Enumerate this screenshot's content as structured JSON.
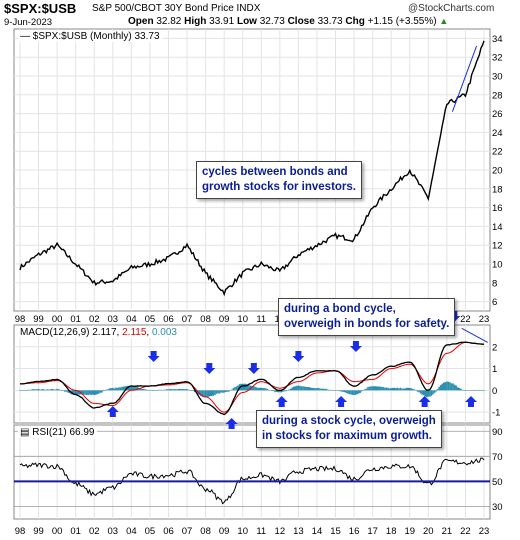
{
  "header": {
    "symbol": "$SPX:$USB",
    "description": "S&P 500/CBOT 30Y Bond Price INDX",
    "credit": "@StockCharts.com",
    "date": "9-Jun-2023",
    "open_label": "Open",
    "open": "32.82",
    "high_label": "High",
    "high": "33.91",
    "low_label": "Low",
    "low": "32.73",
    "close_label": "Close",
    "close": "33.73",
    "chg_label": "Chg",
    "chg": "+1.15 (+3.55%)"
  },
  "price_legend": "$SPX:$USB (Monthly) 33.73",
  "macd_legend": {
    "name": "MACD(12,26,9)",
    "v1": "2.117",
    "v2": "2.115",
    "v3": "0.003"
  },
  "rsi_legend": "RSI(21) 66.99",
  "callouts": {
    "top": [
      "cycles between bonds and",
      "growth stocks for investors."
    ],
    "bond": [
      "during a bond cycle,",
      "overweigh in bonds for safety."
    ],
    "stock": [
      "during a stock cycle, overweigh",
      "in stocks for maximum growth."
    ]
  },
  "colors": {
    "price_line": "#000000",
    "macd_line": "#000000",
    "signal_line": "#e00000",
    "histogram": "#2b8fb0",
    "arrow": "#1a2ee8",
    "callout_text": "#0b1e8f",
    "rsi_line": "#000000",
    "rsi_50": "#1a1aa0",
    "trendline": "#1a2ee8",
    "macd_value2": "#e00000",
    "macd_value3": "#2b8fb0"
  },
  "x_tick_labels": [
    "98",
    "99",
    "00",
    "01",
    "02",
    "03",
    "04",
    "05",
    "06",
    "07",
    "08",
    "09",
    "10",
    "11",
    "12",
    "13",
    "14",
    "15",
    "16",
    "17",
    "18",
    "19",
    "20",
    "21",
    "22",
    "23"
  ],
  "chart_data": [
    {
      "type": "line",
      "title": "$SPX:$USB (Monthly)",
      "x": [
        "1998",
        "1999",
        "2000",
        "2001",
        "2002",
        "2003",
        "2004",
        "2005",
        "2006",
        "2007",
        "2008",
        "2009",
        "2010",
        "2011",
        "2012",
        "2013",
        "2014",
        "2015",
        "2016",
        "2017",
        "2018",
        "2019",
        "2020",
        "2021",
        "2022",
        "2023"
      ],
      "series": [
        {
          "name": "$SPX:$USB (Monthly)",
          "values": [
            9.6,
            11.0,
            12.0,
            10.0,
            8.0,
            8.2,
            9.6,
            10.0,
            10.6,
            12.0,
            9.0,
            7.0,
            9.0,
            10.0,
            9.2,
            11.0,
            12.0,
            13.0,
            12.6,
            16.0,
            18.0,
            20.0,
            17.0,
            27.0,
            28.0,
            33.73
          ]
        }
      ],
      "ylim": [
        5,
        35
      ],
      "y_ticks": [
        6,
        8,
        10,
        12,
        14,
        16,
        18,
        20,
        22,
        24,
        26,
        28,
        30,
        32,
        34
      ]
    },
    {
      "type": "line",
      "title": "MACD(12,26,9)",
      "x": [
        "1998",
        "1999",
        "2000",
        "2001",
        "2002",
        "2003",
        "2004",
        "2005",
        "2006",
        "2007",
        "2008",
        "2009",
        "2010",
        "2011",
        "2012",
        "2013",
        "2014",
        "2015",
        "2016",
        "2017",
        "2018",
        "2019",
        "2020",
        "2021",
        "2022",
        "2023"
      ],
      "series": [
        {
          "name": "MACD",
          "values": [
            0.3,
            0.4,
            0.5,
            -0.2,
            -0.8,
            -0.6,
            0.2,
            0.2,
            0.3,
            0.4,
            -0.6,
            -1.1,
            0.2,
            0.5,
            0.0,
            0.6,
            0.9,
            0.9,
            0.2,
            0.7,
            1.1,
            1.3,
            0.0,
            2.1,
            2.2,
            2.117
          ]
        },
        {
          "name": "Signal",
          "values": [
            0.3,
            0.35,
            0.45,
            0.0,
            -0.6,
            -0.7,
            0.0,
            0.2,
            0.25,
            0.35,
            -0.3,
            -1.0,
            -0.1,
            0.4,
            0.1,
            0.4,
            0.8,
            0.9,
            0.4,
            0.5,
            1.0,
            1.2,
            0.3,
            1.7,
            2.2,
            2.115
          ]
        },
        {
          "name": "Histogram",
          "values": [
            0.0,
            0.05,
            0.05,
            -0.2,
            -0.2,
            0.1,
            0.2,
            0.0,
            0.05,
            0.05,
            -0.3,
            -0.1,
            0.3,
            0.1,
            -0.1,
            0.2,
            0.1,
            0.0,
            -0.2,
            0.2,
            0.1,
            0.1,
            -0.3,
            0.4,
            0.0,
            0.003
          ]
        }
      ],
      "ylim": [
        -1.5,
        3
      ],
      "y_ticks": [
        -1,
        0,
        1,
        2
      ]
    },
    {
      "type": "line",
      "title": "RSI(21)",
      "x": [
        "1998",
        "1999",
        "2000",
        "2001",
        "2002",
        "2003",
        "2004",
        "2005",
        "2006",
        "2007",
        "2008",
        "2009",
        "2010",
        "2011",
        "2012",
        "2013",
        "2014",
        "2015",
        "2016",
        "2017",
        "2018",
        "2019",
        "2020",
        "2021",
        "2022",
        "2023"
      ],
      "series": [
        {
          "name": "RSI(21)",
          "values": [
            62,
            63,
            62,
            48,
            40,
            45,
            56,
            54,
            55,
            58,
            44,
            34,
            52,
            55,
            50,
            58,
            60,
            60,
            52,
            60,
            62,
            62,
            48,
            66,
            65,
            66.99
          ]
        }
      ],
      "ylim": [
        20,
        95
      ],
      "y_ticks": [
        30,
        50,
        70,
        90
      ]
    }
  ]
}
